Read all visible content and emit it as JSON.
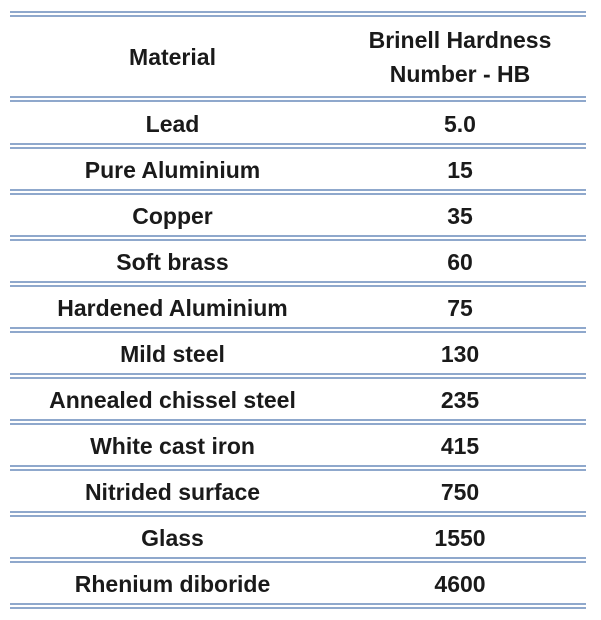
{
  "table": {
    "header": [
      "Material",
      "Brinell Hardness Number - HB"
    ],
    "rows": [
      [
        "Lead",
        "5.0"
      ],
      [
        "Pure Aluminium",
        "15"
      ],
      [
        "Copper",
        "35"
      ],
      [
        "Soft brass",
        "60"
      ],
      [
        "Hardened Aluminium",
        "75"
      ],
      [
        "Mild steel",
        "130"
      ],
      [
        "Annealed chissel steel",
        "235"
      ],
      [
        "White cast iron",
        "415"
      ],
      [
        "Nitrided surface",
        "750"
      ],
      [
        "Glass",
        "1550"
      ],
      [
        "Rhenium diboride",
        "4600"
      ]
    ]
  }
}
